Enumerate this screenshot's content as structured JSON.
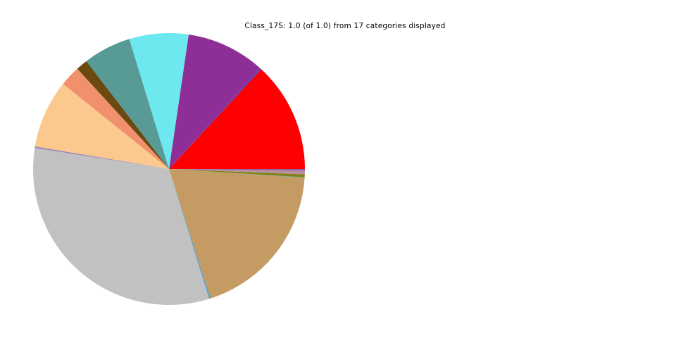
{
  "page": {
    "background": "#ffffff"
  },
  "chart_data": {
    "type": "pie",
    "title": "Class_17S: 1.0 (of 1.0) from 17 categories displayed",
    "displayed_fraction": "1.0",
    "displayed_fraction_of": "1.0",
    "num_categories": 17,
    "start_angle_deg": 0,
    "direction": "counterclockwise",
    "legend": "none",
    "labels_shown": false,
    "slices": [
      {
        "name": "slice-red",
        "fraction": 0.1313,
        "color": "#fe0000"
      },
      {
        "name": "slice-blue-hairline",
        "fraction": 0.0014,
        "color": "#4040c8"
      },
      {
        "name": "slice-purple",
        "fraction": 0.0942,
        "color": "#8e2f97"
      },
      {
        "name": "slice-cyan",
        "fraction": 0.0703,
        "color": "#6ee8ef"
      },
      {
        "name": "slice-teal",
        "fraction": 0.0569,
        "color": "#579a96"
      },
      {
        "name": "slice-dark-brown",
        "fraction": 0.0139,
        "color": "#6b4a11"
      },
      {
        "name": "slice-salmon",
        "fraction": 0.0244,
        "color": "#f1906d"
      },
      {
        "name": "slice-peach",
        "fraction": 0.0811,
        "color": "#fbc98e"
      },
      {
        "name": "slice-lavender-hairline",
        "fraction": 0.0017,
        "color": "#9b84ae"
      },
      {
        "name": "slice-slate-hairline",
        "fraction": 0.0002,
        "color": "#7a6ab0"
      },
      {
        "name": "slice-gray",
        "fraction": 0.3225,
        "color": "#c1c1c1"
      },
      {
        "name": "slice-sky-hairline",
        "fraction": 0.0014,
        "color": "#3f9fd4"
      },
      {
        "name": "slice-tan",
        "fraction": 0.1905,
        "color": "#c59b64"
      },
      {
        "name": "slice-seagreen-hairline",
        "fraction": 0.0006,
        "color": "#53a08b"
      },
      {
        "name": "slice-olive",
        "fraction": 0.0033,
        "color": "#7f7f15"
      },
      {
        "name": "slice-mauve",
        "fraction": 0.0044,
        "color": "#b78f9c"
      },
      {
        "name": "slice-violet-hairline",
        "fraction": 0.0019,
        "color": "#8a62a8"
      }
    ]
  }
}
